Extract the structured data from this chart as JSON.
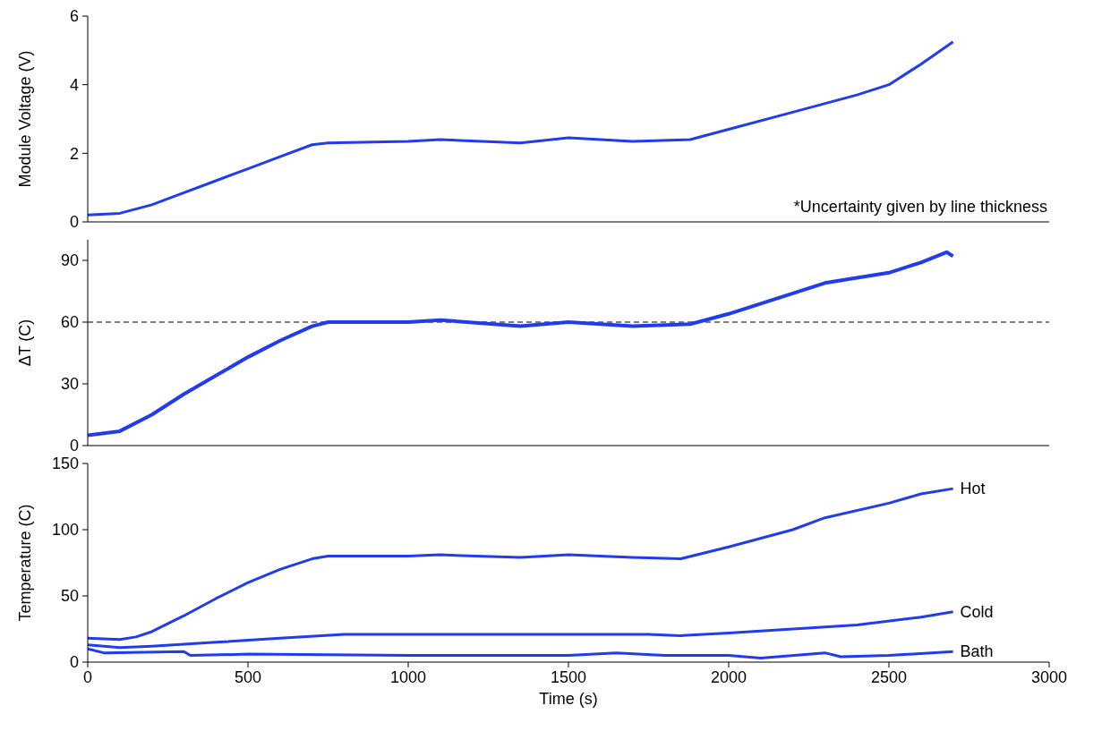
{
  "chart_data": [
    {
      "type": "line",
      "ylabel": "Module Voltage (V)",
      "xlim": [
        0,
        3000
      ],
      "xticks": [
        0,
        500,
        1000,
        1500,
        2000,
        2500,
        3000
      ],
      "ylim": [
        0,
        6
      ],
      "yticks": [
        0,
        2,
        4,
        6
      ],
      "tick_labels": "y",
      "annotations": [
        "*Uncertainty given by line thickness"
      ],
      "series": [
        {
          "color": "#1f3cf0",
          "x": [
            0,
            100,
            200,
            300,
            400,
            500,
            600,
            700,
            750,
            1000,
            1100,
            1350,
            1500,
            1700,
            1880,
            2000,
            2200,
            2400,
            2500,
            2600,
            2700
          ],
          "values": [
            0.2,
            0.25,
            0.5,
            0.85,
            1.2,
            1.55,
            1.9,
            2.25,
            2.3,
            2.35,
            2.4,
            2.3,
            2.45,
            2.35,
            2.4,
            2.7,
            3.2,
            3.7,
            4.0,
            4.6,
            5.25
          ]
        }
      ]
    },
    {
      "type": "line",
      "ylabel": "ΔT (C)",
      "xlim": [
        0,
        3000
      ],
      "xticks": [
        0,
        500,
        1000,
        1500,
        2000,
        2500,
        3000
      ],
      "ylim": [
        0,
        100
      ],
      "yticks": [
        0,
        30,
        60,
        90
      ],
      "tick_labels": "y",
      "ref_lines": [
        {
          "axis": "y",
          "value": 60,
          "color": "#000000",
          "line_style": "dashed"
        }
      ],
      "series": [
        {
          "color": "#1f3cf0",
          "x": [
            0,
            100,
            200,
            300,
            400,
            500,
            600,
            700,
            750,
            1000,
            1100,
            1350,
            1500,
            1700,
            1880,
            2000,
            2200,
            2300,
            2500,
            2600,
            2680,
            2700
          ],
          "values": [
            5,
            7,
            15,
            25,
            34,
            43,
            51,
            58,
            60,
            60,
            61,
            58,
            60,
            58,
            59,
            64,
            74,
            79,
            84,
            89,
            94,
            92
          ]
        }
      ]
    },
    {
      "type": "line",
      "xlabel": "Time (s)",
      "ylabel": "Temperature (C)",
      "xlim": [
        0,
        3000
      ],
      "xticks": [
        0,
        500,
        1000,
        1500,
        2000,
        2500,
        3000
      ],
      "ylim": [
        0,
        150
      ],
      "yticks": [
        0,
        50,
        100,
        150
      ],
      "series": [
        {
          "name": "Hot",
          "color": "#1f3cf0",
          "x": [
            0,
            100,
            150,
            200,
            300,
            400,
            500,
            600,
            700,
            750,
            1000,
            1100,
            1350,
            1500,
            1700,
            1850,
            2000,
            2200,
            2300,
            2500,
            2600,
            2700
          ],
          "values": [
            18,
            17,
            19,
            23,
            35,
            48,
            60,
            70,
            78,
            80,
            80,
            81,
            79,
            81,
            79,
            78,
            87,
            100,
            109,
            120,
            127,
            131
          ]
        },
        {
          "name": "Cold",
          "color": "#1f3cf0",
          "x": [
            0,
            100,
            200,
            400,
            600,
            800,
            1000,
            1500,
            1750,
            1850,
            2000,
            2200,
            2400,
            2600,
            2700
          ],
          "values": [
            13,
            11,
            12,
            15,
            18,
            21,
            21,
            21,
            21,
            20,
            22,
            25,
            28,
            34,
            38
          ]
        },
        {
          "name": "Bath",
          "color": "#1f3cf0",
          "x": [
            0,
            50,
            300,
            320,
            500,
            1000,
            1500,
            1650,
            1800,
            2000,
            2100,
            2300,
            2350,
            2500,
            2700
          ],
          "values": [
            10,
            7,
            8,
            5,
            6,
            5,
            5,
            7,
            5,
            5,
            3,
            7,
            4,
            5,
            8
          ]
        }
      ]
    }
  ]
}
